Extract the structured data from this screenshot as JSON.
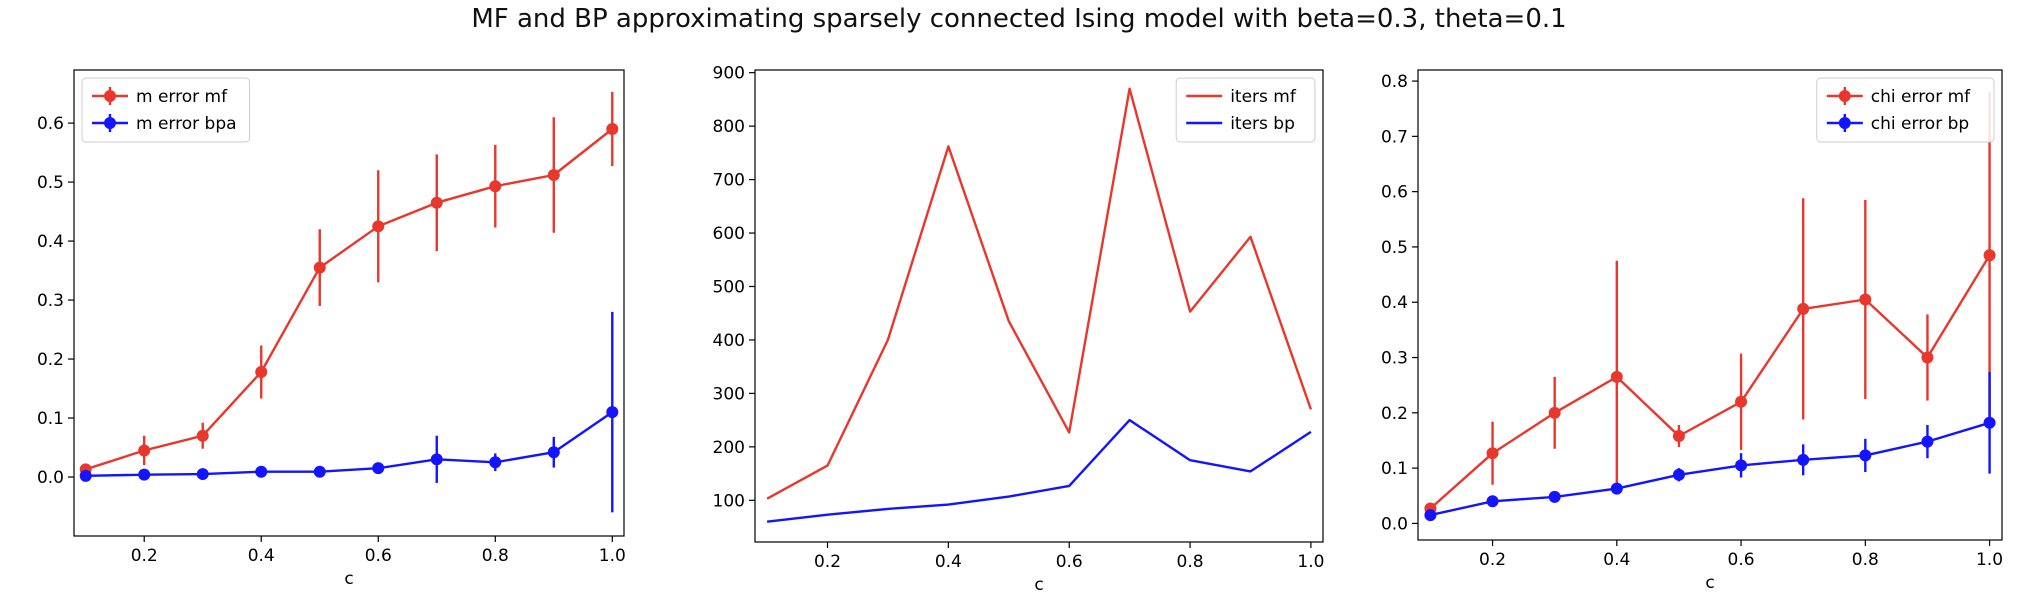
{
  "figure": {
    "title": "MF and BP approximating sparsely connected Ising model with beta=0.3, theta=0.1"
  },
  "chart_data": [
    {
      "type": "line",
      "error_bars": true,
      "markers": true,
      "xlabel": "c",
      "ylabel": "",
      "xlim": [
        0.08,
        1.02
      ],
      "ylim": [
        -0.1,
        0.69
      ],
      "xticks": [
        "0.2",
        "0.4",
        "0.6",
        "0.8",
        "1.0"
      ],
      "yticks": [
        "0.0",
        "0.1",
        "0.2",
        "0.3",
        "0.4",
        "0.5",
        "0.6"
      ],
      "legend_position": "top-left",
      "x": [
        0.1,
        0.2,
        0.3,
        0.4,
        0.5,
        0.6,
        0.7,
        0.8,
        0.9,
        1.0
      ],
      "series": [
        {
          "name": "m error mf",
          "color": "#e8372c",
          "values": [
            0.013,
            0.045,
            0.07,
            0.178,
            0.355,
            0.425,
            0.465,
            0.493,
            0.512,
            0.59
          ],
          "errors": [
            0.005,
            0.025,
            0.022,
            0.045,
            0.065,
            0.095,
            0.082,
            0.07,
            0.098,
            0.063
          ]
        },
        {
          "name": "m error bpa",
          "color": "#1414ff",
          "values": [
            0.002,
            0.004,
            0.005,
            0.009,
            0.009,
            0.015,
            0.03,
            0.025,
            0.042,
            0.11
          ],
          "errors": [
            0.002,
            0.002,
            0.002,
            0.003,
            0.003,
            0.005,
            0.04,
            0.015,
            0.026,
            0.17
          ]
        }
      ]
    },
    {
      "type": "line",
      "error_bars": false,
      "markers": false,
      "xlabel": "c",
      "ylabel": "",
      "xlim": [
        0.08,
        1.02
      ],
      "ylim": [
        22,
        905
      ],
      "xticks": [
        "0.2",
        "0.4",
        "0.6",
        "0.8",
        "1.0"
      ],
      "yticks": [
        "100",
        "200",
        "300",
        "400",
        "500",
        "600",
        "700",
        "800",
        "900"
      ],
      "legend_position": "top-right",
      "x": [
        0.1,
        0.2,
        0.3,
        0.4,
        0.5,
        0.6,
        0.7,
        0.8,
        0.9,
        1.0
      ],
      "series": [
        {
          "name": "iters mf",
          "color": "#e8372c",
          "values": [
            103,
            165,
            400,
            762,
            435,
            227,
            870,
            453,
            593,
            270
          ]
        },
        {
          "name": "iters bp",
          "color": "#1414ff",
          "values": [
            60,
            73,
            84,
            92,
            107,
            127,
            250,
            175,
            154,
            228
          ]
        }
      ]
    },
    {
      "type": "line",
      "error_bars": true,
      "markers": true,
      "xlabel": "c",
      "ylabel": "",
      "xlim": [
        0.08,
        1.02
      ],
      "ylim": [
        -0.03,
        0.82
      ],
      "xticks": [
        "0.2",
        "0.4",
        "0.6",
        "0.8",
        "1.0"
      ],
      "yticks": [
        "0.0",
        "0.1",
        "0.2",
        "0.3",
        "0.4",
        "0.5",
        "0.6",
        "0.7",
        "0.8"
      ],
      "legend_position": "top-right",
      "x": [
        0.1,
        0.2,
        0.3,
        0.4,
        0.5,
        0.6,
        0.7,
        0.8,
        0.9,
        1.0
      ],
      "series": [
        {
          "name": "chi error mf",
          "color": "#e8372c",
          "values": [
            0.027,
            0.127,
            0.2,
            0.265,
            0.158,
            0.22,
            0.388,
            0.405,
            0.3,
            0.485
          ],
          "errors": [
            0.006,
            0.057,
            0.065,
            0.21,
            0.02,
            0.087,
            0.2,
            0.18,
            0.078,
            0.295
          ]
        },
        {
          "name": "chi error bp",
          "color": "#1414ff",
          "values": [
            0.015,
            0.04,
            0.048,
            0.063,
            0.088,
            0.105,
            0.115,
            0.123,
            0.148,
            0.182
          ],
          "errors": [
            0.006,
            0.006,
            0.006,
            0.006,
            0.012,
            0.022,
            0.028,
            0.03,
            0.03,
            0.092
          ]
        }
      ]
    }
  ]
}
